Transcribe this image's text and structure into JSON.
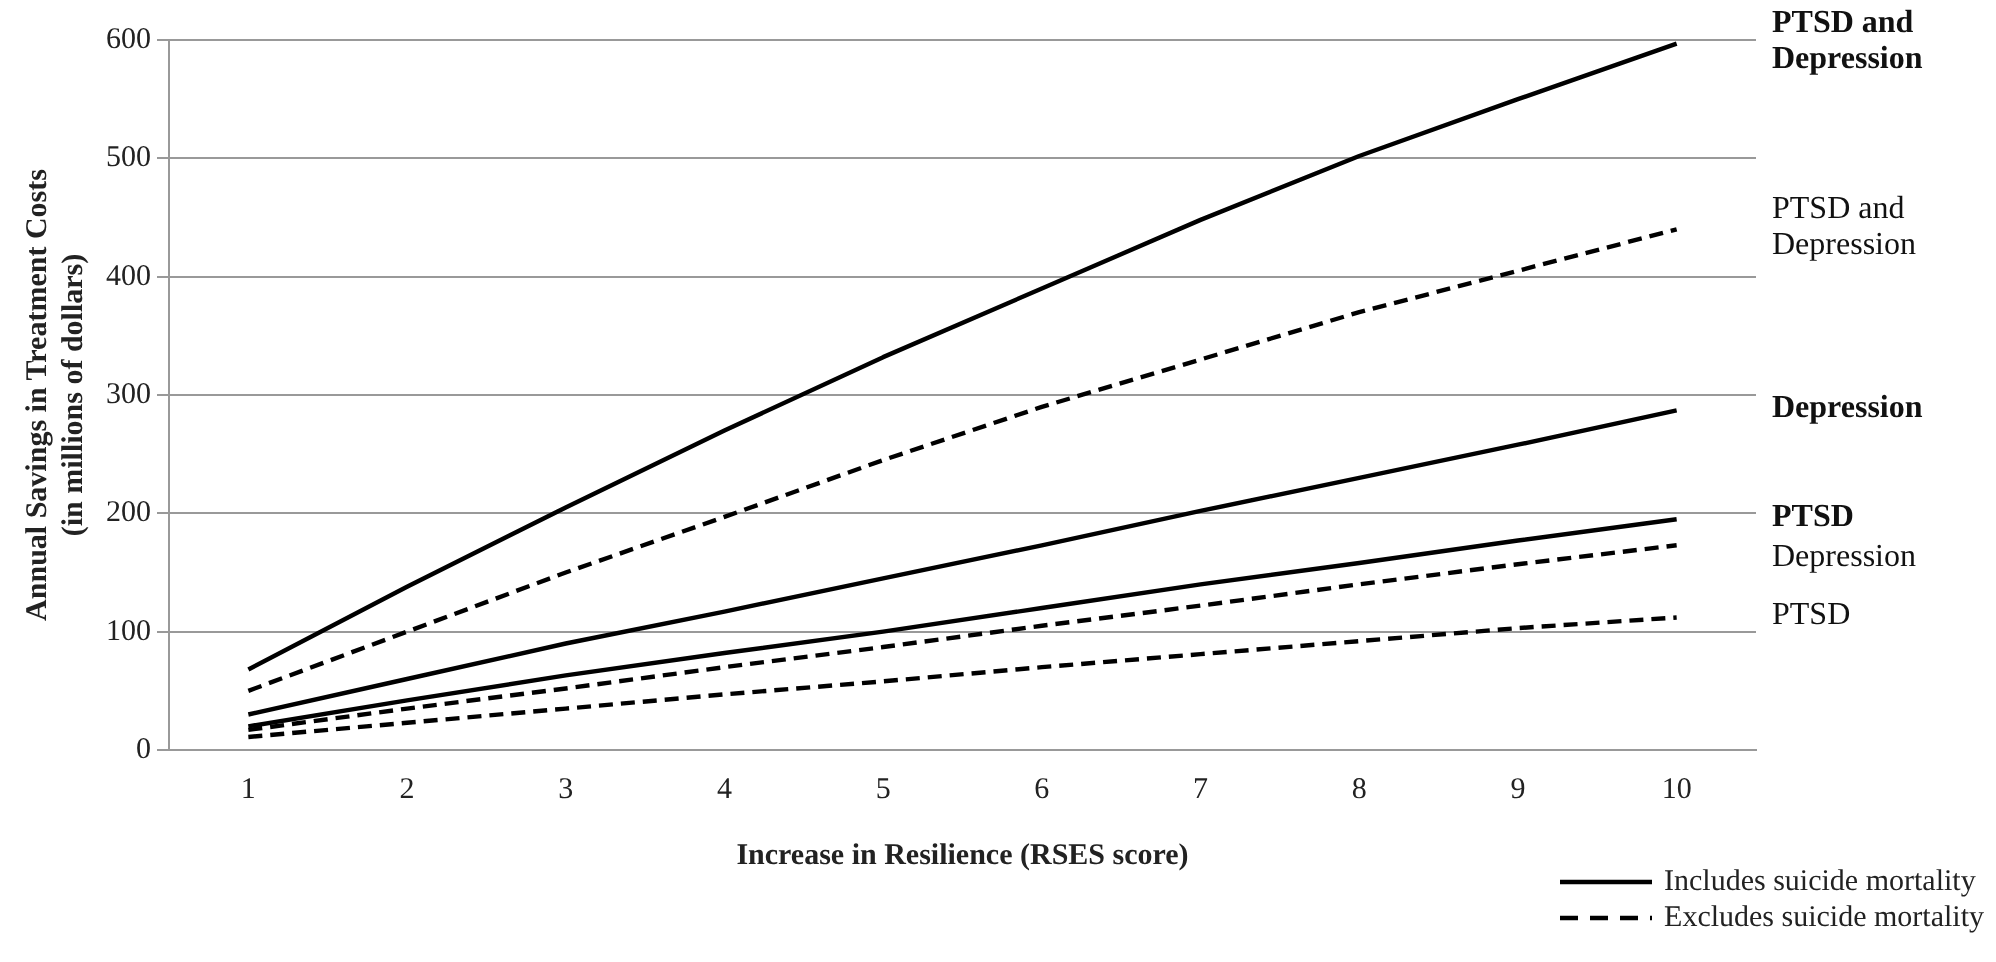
{
  "chart_data": {
    "type": "line",
    "xlabel": "Increase in Resilience (RSES score)",
    "ylabel": "Annual Savings in Treatment Costs\n(in millions of dollars)",
    "categories": [
      "1",
      "2",
      "3",
      "4",
      "5",
      "6",
      "7",
      "8",
      "9",
      "10"
    ],
    "series": [
      {
        "name": "PTSD and Depression",
        "color": "#000000",
        "line_style": "solid",
        "values": [
          68,
          138,
          205,
          270,
          332,
          390,
          448,
          502,
          550,
          597
        ]
      },
      {
        "name": "PTSD and Depression",
        "color": "#000000",
        "line_style": "dashed",
        "values": [
          50,
          100,
          150,
          197,
          245,
          290,
          330,
          370,
          405,
          440
        ]
      },
      {
        "name": "Depression",
        "color": "#000000",
        "line_style": "solid",
        "values": [
          30,
          60,
          90,
          117,
          145,
          173,
          202,
          230,
          258,
          287
        ]
      },
      {
        "name": "PTSD",
        "color": "#000000",
        "line_style": "solid",
        "values": [
          20,
          42,
          63,
          82,
          100,
          120,
          140,
          158,
          177,
          195
        ]
      },
      {
        "name": "Depression",
        "color": "#000000",
        "line_style": "dashed",
        "values": [
          17,
          35,
          52,
          70,
          87,
          105,
          122,
          140,
          157,
          173
        ]
      },
      {
        "name": "PTSD",
        "color": "#000000",
        "line_style": "dashed",
        "values": [
          11,
          23,
          35,
          47,
          58,
          70,
          81,
          92,
          103,
          112
        ]
      }
    ],
    "ylim": [
      0,
      600
    ],
    "yticks": [
      0,
      100,
      200,
      300,
      400,
      500,
      600
    ],
    "grid": "y",
    "marker": "none",
    "annotations": [
      "Includes suicide mortality",
      "Excludes suicide mortality"
    ]
  }
}
